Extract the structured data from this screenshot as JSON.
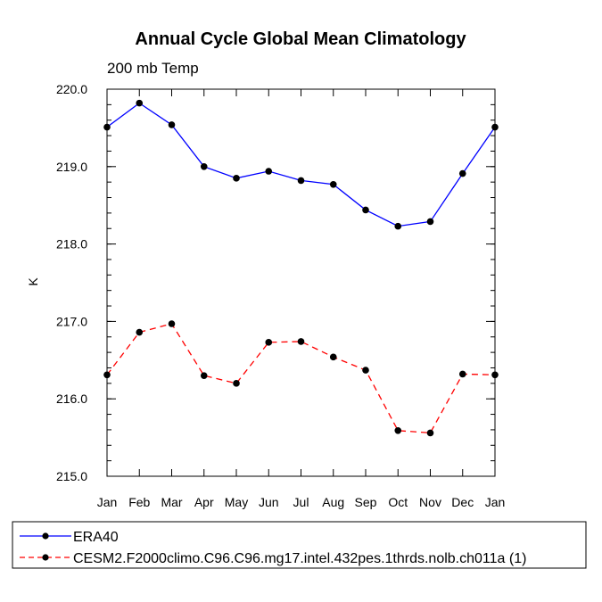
{
  "chart_data": {
    "type": "line",
    "title": "Annual Cycle Global Mean Climatology",
    "subtitle": "200 mb Temp",
    "xlabel": "",
    "ylabel": "K",
    "categories": [
      "Jan",
      "Feb",
      "Mar",
      "Apr",
      "May",
      "Jun",
      "Jul",
      "Aug",
      "Sep",
      "Oct",
      "Nov",
      "Dec",
      "Jan"
    ],
    "ylim": [
      215.0,
      220.0
    ],
    "yticks": [
      "215.0",
      "216.0",
      "217.0",
      "218.0",
      "219.0",
      "220.0"
    ],
    "grid": false,
    "legend_position": "bottom",
    "series": [
      {
        "name": "ERA40",
        "color": "#0000ff",
        "line_style": "solid",
        "marker": "circle",
        "values": [
          219.51,
          219.82,
          219.54,
          219.0,
          218.85,
          218.94,
          218.82,
          218.77,
          218.44,
          218.23,
          218.29,
          218.91,
          219.51
        ]
      },
      {
        "name": "CESM2.F2000climo.C96.C96.mg17.intel.432pes.1thrds.nolb.ch011a (1)",
        "color": "#ff0000",
        "line_style": "dashed",
        "marker": "circle",
        "values": [
          216.31,
          216.86,
          216.97,
          216.3,
          216.2,
          216.73,
          216.74,
          216.54,
          216.37,
          215.59,
          215.56,
          216.32,
          216.31
        ]
      }
    ]
  }
}
